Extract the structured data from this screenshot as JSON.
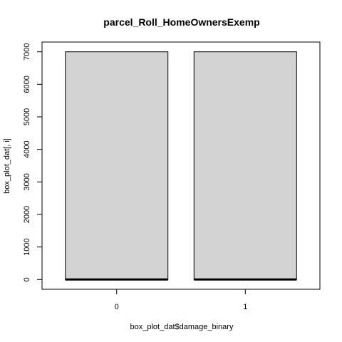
{
  "chart_data": {
    "type": "boxplot",
    "title": "parcel_Roll_HomeOwnersExemp",
    "xlabel": "box_plot_dat$damage_binary",
    "ylabel": "box_plot_dat[, i]",
    "categories": [
      "0",
      "1"
    ],
    "yticks": [
      0,
      1000,
      2000,
      3000,
      4000,
      5000,
      6000,
      7000
    ],
    "ylim": [
      -300,
      7300
    ],
    "boxes": [
      {
        "category": "0",
        "min": 0,
        "q1": 0,
        "median": 0,
        "q3": 7000,
        "max": 7000
      },
      {
        "category": "1",
        "min": 0,
        "q1": 0,
        "median": 0,
        "q3": 7000,
        "max": 7000
      }
    ],
    "box_fill": "#d3d3d3",
    "grid": false,
    "legend": "none"
  }
}
